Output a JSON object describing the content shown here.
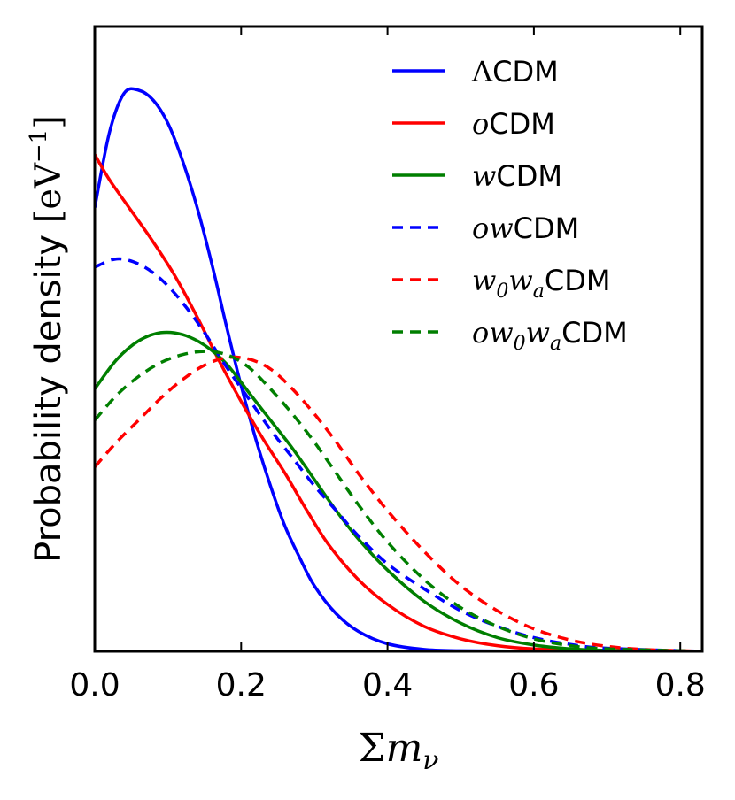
{
  "chart_data": {
    "type": "line",
    "xlabel": "Σm_ν",
    "xlabel_main": "Σ",
    "xlabel_var": "m",
    "xlabel_sub": "ν",
    "ylabel": "Probability density [eV⁻¹]",
    "ylabel_text": "Probability density",
    "ylabel_unit_base": "[eV",
    "ylabel_unit_exp": "−1",
    "ylabel_unit_close": "]",
    "xlim": [
      0.0,
      0.83
    ],
    "ylim": [
      0,
      1.0
    ],
    "xticks": [
      "0.0",
      "0.2",
      "0.4",
      "0.6",
      "0.8"
    ],
    "xtick_values": [
      0.0,
      0.2,
      0.4,
      0.6,
      0.8
    ],
    "yticks_shown": false,
    "grid": false,
    "legend_position": "upper-right",
    "series": [
      {
        "name": "ΛCDM",
        "prefix": "Λ",
        "suffix": "CDM",
        "color": "#0000ff",
        "dash": "solid",
        "x": [
          0.0,
          0.02,
          0.04,
          0.06,
          0.08,
          0.1,
          0.12,
          0.14,
          0.16,
          0.18,
          0.2,
          0.22,
          0.24,
          0.26,
          0.28,
          0.3,
          0.33,
          0.36,
          0.4,
          0.45,
          0.5,
          0.6,
          0.7,
          0.83
        ],
        "y": [
          0.71,
          0.83,
          0.893,
          0.898,
          0.882,
          0.845,
          0.785,
          0.71,
          0.62,
          0.52,
          0.425,
          0.34,
          0.265,
          0.2,
          0.15,
          0.105,
          0.06,
          0.032,
          0.012,
          0.003,
          0.0009,
          0.0001,
          0.0,
          0.0
        ]
      },
      {
        "name": "oCDM",
        "prefix": "o",
        "suffix": "CDM",
        "color": "#ff0000",
        "dash": "solid",
        "x": [
          0.0,
          0.02,
          0.05,
          0.08,
          0.11,
          0.14,
          0.17,
          0.2,
          0.23,
          0.26,
          0.29,
          0.32,
          0.36,
          0.4,
          0.45,
          0.5,
          0.55,
          0.6,
          0.7,
          0.83
        ],
        "y": [
          0.795,
          0.755,
          0.705,
          0.655,
          0.6,
          0.535,
          0.465,
          0.4,
          0.34,
          0.285,
          0.225,
          0.17,
          0.115,
          0.075,
          0.04,
          0.02,
          0.009,
          0.004,
          0.0007,
          0.0
        ]
      },
      {
        "name": "wCDM",
        "prefix": "w",
        "suffix": "CDM",
        "color": "#007f00",
        "dash": "solid",
        "x": [
          0.0,
          0.03,
          0.06,
          0.09,
          0.12,
          0.15,
          0.18,
          0.21,
          0.24,
          0.27,
          0.3,
          0.33,
          0.36,
          0.4,
          0.45,
          0.5,
          0.55,
          0.6,
          0.65,
          0.7,
          0.83
        ],
        "y": [
          0.42,
          0.467,
          0.497,
          0.51,
          0.507,
          0.49,
          0.46,
          0.415,
          0.37,
          0.325,
          0.275,
          0.225,
          0.18,
          0.13,
          0.08,
          0.045,
          0.022,
          0.01,
          0.004,
          0.0015,
          0.0
        ]
      },
      {
        "name": "owCDM",
        "prefix": "ow",
        "suffix": "CDM",
        "color": "#0000ff",
        "dash": "dashed",
        "x": [
          0.0,
          0.03,
          0.06,
          0.09,
          0.12,
          0.15,
          0.18,
          0.21,
          0.24,
          0.27,
          0.3,
          0.33,
          0.36,
          0.4,
          0.45,
          0.5,
          0.55,
          0.6,
          0.65,
          0.7,
          0.83
        ],
        "y": [
          0.615,
          0.628,
          0.62,
          0.596,
          0.558,
          0.51,
          0.455,
          0.405,
          0.355,
          0.31,
          0.265,
          0.225,
          0.185,
          0.14,
          0.1,
          0.065,
          0.04,
          0.022,
          0.011,
          0.005,
          0.0
        ]
      },
      {
        "name": "w0waCDM",
        "prefix": "w",
        "sub1": "0",
        "mid": "w",
        "sub2": "a",
        "suffix": "CDM",
        "color": "#ff0000",
        "dash": "dashed",
        "x": [
          0.0,
          0.03,
          0.06,
          0.09,
          0.12,
          0.15,
          0.18,
          0.21,
          0.24,
          0.27,
          0.3,
          0.33,
          0.36,
          0.4,
          0.45,
          0.5,
          0.55,
          0.6,
          0.65,
          0.7,
          0.75,
          0.83
        ],
        "y": [
          0.295,
          0.335,
          0.37,
          0.405,
          0.435,
          0.458,
          0.47,
          0.468,
          0.452,
          0.42,
          0.38,
          0.335,
          0.285,
          0.225,
          0.16,
          0.105,
          0.065,
          0.036,
          0.018,
          0.008,
          0.003,
          0.0
        ]
      },
      {
        "name": "ow0waCDM",
        "prefix": "ow",
        "sub1": "0",
        "mid": "w",
        "sub2": "a",
        "suffix": "CDM",
        "color": "#007f00",
        "dash": "dashed",
        "x": [
          0.0,
          0.03,
          0.06,
          0.09,
          0.12,
          0.15,
          0.18,
          0.21,
          0.24,
          0.27,
          0.3,
          0.33,
          0.36,
          0.4,
          0.45,
          0.5,
          0.55,
          0.6,
          0.65,
          0.7,
          0.83
        ],
        "y": [
          0.37,
          0.41,
          0.44,
          0.462,
          0.475,
          0.48,
          0.475,
          0.455,
          0.42,
          0.38,
          0.335,
          0.285,
          0.235,
          0.175,
          0.115,
          0.07,
          0.04,
          0.02,
          0.009,
          0.004,
          0.0
        ]
      }
    ]
  }
}
